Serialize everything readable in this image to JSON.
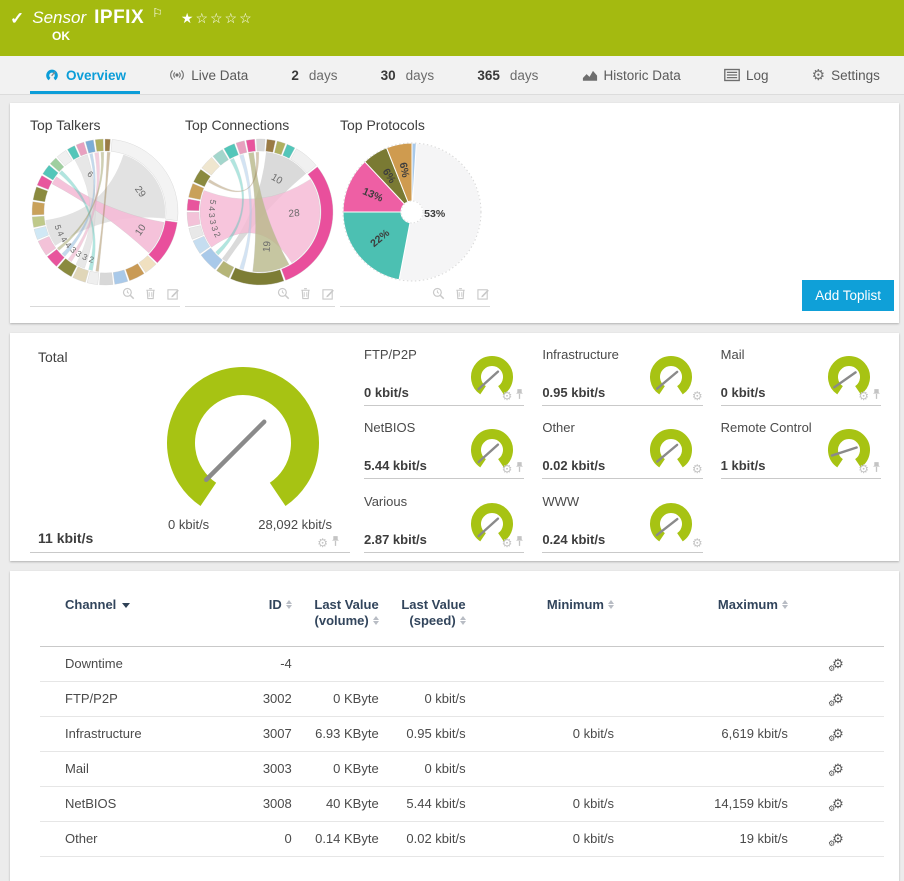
{
  "colors": {
    "brand_green": "#a4ba10",
    "gauge_green": "#a7c313",
    "accent_blue": "#0b9dd8",
    "button_blue": "#0fa0d8"
  },
  "header": {
    "kind": "Sensor",
    "name": "IPFIX",
    "stars": "★☆☆☆☆",
    "status": "OK"
  },
  "tabs": {
    "items": [
      {
        "label": "Overview",
        "icon": "gauge-icon",
        "active": true
      },
      {
        "label": "Live Data",
        "icon": "live-data-icon",
        "active": false
      },
      {
        "num": "2",
        "label": "days",
        "active": false
      },
      {
        "num": "30",
        "label": "days",
        "active": false
      },
      {
        "num": "365",
        "label": "days",
        "active": false
      },
      {
        "label": "Historic Data",
        "icon": "historic-data-icon",
        "active": false
      },
      {
        "label": "Log",
        "icon": "log-icon",
        "active": false
      },
      {
        "label": "Settings",
        "icon": "settings-gear-icon",
        "active": false
      }
    ]
  },
  "toplists": {
    "add_button": "Add Toplist",
    "charts": [
      {
        "title": "Top Talkers"
      },
      {
        "title": "Top Connections"
      },
      {
        "title": "Top Protocols"
      }
    ]
  },
  "total": {
    "label": "Total",
    "value": "11 kbit/s",
    "min": "0 kbit/s",
    "max": "28,092 kbit/s"
  },
  "chart_data": [
    {
      "id": "top-talkers",
      "type": "chord",
      "title": "Top Talkers",
      "start": 0,
      "sizes": [
        4,
        86,
        34,
        10,
        12,
        10,
        10,
        8,
        10,
        12,
        10,
        12,
        8,
        8,
        10,
        10,
        8,
        8,
        6,
        8,
        6,
        6,
        6,
        6
      ],
      "colors": [
        "#9a7b45",
        "#f3f3f3",
        "#e94f9c",
        "#f0e0c0",
        "#c99a55",
        "#a9c9e9",
        "#d8d8d8",
        "#efefef",
        "#e0d6b8",
        "#8a8a3f",
        "#e8559d",
        "#f3c2d8",
        "#d0e8f5",
        "#bfc98a",
        "#c9a15a",
        "#8a8a3f",
        "#e8559d",
        "#53c6b9",
        "#9fcf9f",
        "#f0f0f0",
        "#53c6b9",
        "#e8a0bf",
        "#7badd6",
        "#b0b060"
      ],
      "ribbons": [
        {
          "s": [
            18,
            96
          ],
          "e": [
            236,
            262
          ],
          "c": "#cccccc",
          "o": 0.55
        },
        {
          "s": [
            100,
            133
          ],
          "e": [
            298,
            306
          ],
          "c": "#f5bcd7",
          "o": 0.9
        },
        {
          "s": [
            330,
            343
          ],
          "e": [
            200,
            209
          ],
          "c": "#dddddd",
          "o": 0.7
        },
        {
          "s": [
            2,
            5
          ],
          "e": [
            186,
            189
          ],
          "c": "#9a7b45",
          "o": 0.45
        },
        {
          "s": [
            310,
            314
          ],
          "e": [
            192,
            196
          ],
          "c": "#53c6b9",
          "o": 0.45
        },
        {
          "s": [
            350,
            354
          ],
          "e": [
            214,
            218
          ],
          "c": "#e8a0bf",
          "o": 0.5
        },
        {
          "s": [
            345,
            348
          ],
          "e": [
            222,
            226
          ],
          "c": "#7badd6",
          "o": 0.45
        },
        {
          "s": [
            356,
            359
          ],
          "e": [
            230,
            233
          ],
          "c": "#8a8a3f",
          "o": 0.4
        }
      ],
      "labels": [
        {
          "t": "6",
          "a": 338,
          "r": 0.66,
          "rot": 40
        },
        {
          "t": "29",
          "a": 60,
          "r": 0.66,
          "rot": 55
        },
        {
          "t": "10",
          "a": 117,
          "r": 0.66,
          "rot": -55
        },
        {
          "t": "2",
          "a": 196,
          "r": 0.82,
          "rot": 16
        },
        {
          "t": "3",
          "a": 204,
          "r": 0.82,
          "rot": 24
        },
        {
          "t": "3",
          "a": 212,
          "r": 0.82,
          "rot": 32
        },
        {
          "t": "3",
          "a": 220,
          "r": 0.82,
          "rot": 40
        },
        {
          "t": "4",
          "a": 228,
          "r": 0.82,
          "rot": 48
        },
        {
          "t": "4",
          "a": 236,
          "r": 0.82,
          "rot": 56
        },
        {
          "t": "4",
          "a": 244,
          "r": 0.82,
          "rot": 64
        },
        {
          "t": "5",
          "a": 252,
          "r": 0.82,
          "rot": 72
        }
      ]
    },
    {
      "id": "top-connections",
      "type": "chord",
      "title": "Top Connections",
      "start": 30,
      "sizes": [
        18,
        95,
        38,
        10,
        14,
        10,
        8,
        10,
        8,
        10,
        10,
        10,
        8,
        8,
        6,
        6,
        6,
        6,
        6,
        6
      ],
      "colors": [
        "#f0f0f0",
        "#e94f9c",
        "#7d7d35",
        "#b5b578",
        "#a9c9e9",
        "#c5ddf0",
        "#e8e8e8",
        "#f3c2d8",
        "#e8559d",
        "#c9a15a",
        "#8a8a3f",
        "#efe6cf",
        "#a3d6cc",
        "#53c6b9",
        "#e8a0bf",
        "#e8559d",
        "#d8d8d8",
        "#9a7b45",
        "#b0b060",
        "#53c6b9"
      ],
      "ribbons": [
        {
          "s": [
            6,
            50
          ],
          "e": [
            214,
            219
          ],
          "c": "#d2d2d2",
          "o": 0.8
        },
        {
          "s": [
            57,
            148
          ],
          "e": [
            234,
            291
          ],
          "c": "#f6bcd6",
          "o": 0.85
        },
        {
          "s": [
            151,
            187
          ],
          "e": [
            349,
            354
          ],
          "c": "#b9b98a",
          "o": 0.8
        },
        {
          "s": [
            196,
            200
          ],
          "e": [
            340,
            344
          ],
          "c": "#a9c9e9",
          "o": 0.5
        },
        {
          "s": [
            330,
            334
          ],
          "e": [
            224,
            228
          ],
          "c": "#53c6b9",
          "o": 0.45
        },
        {
          "s": [
            356,
            359
          ],
          "e": [
            300,
            303
          ],
          "c": "#9a7b45",
          "o": 0.4
        }
      ],
      "labels": [
        {
          "t": "10",
          "a": 27,
          "r": 0.6,
          "rot": 30
        },
        {
          "t": "28",
          "a": 93,
          "r": 0.56,
          "rot": -5
        },
        {
          "t": "19",
          "a": 168,
          "r": 0.58,
          "rot": -85
        },
        {
          "t": "2",
          "a": 242,
          "r": 0.8,
          "rot": 62
        },
        {
          "t": "3",
          "a": 250,
          "r": 0.8,
          "rot": 70
        },
        {
          "t": "3",
          "a": 258,
          "r": 0.8,
          "rot": 78
        },
        {
          "t": "3",
          "a": 266,
          "r": 0.8,
          "rot": 86
        },
        {
          "t": "4",
          "a": 274,
          "r": 0.8,
          "rot": 94
        },
        {
          "t": "5",
          "a": 282,
          "r": 0.8,
          "rot": 102
        }
      ]
    },
    {
      "id": "top-protocols",
      "type": "pie",
      "title": "Top Protocols",
      "slices": [
        {
          "pct": 53,
          "c": "#f5f5f6"
        },
        {
          "pct": 22,
          "c": "#4cc0b2"
        },
        {
          "pct": 13,
          "c": "#ee5fa4"
        },
        {
          "pct": 6,
          "c": "#7a7a33"
        },
        {
          "pct": 6,
          "c": "#cf9b4f"
        },
        {
          "pct": 1,
          "c": "#a9c9e9"
        }
      ],
      "labels": [
        {
          "t": "53%",
          "a": 95,
          "r": 0.33,
          "rot": 0
        },
        {
          "t": "22%",
          "a": 230,
          "r": 0.6,
          "rot": -40
        },
        {
          "t": "13%",
          "a": 293,
          "r": 0.62,
          "rot": 23
        },
        {
          "t": "6%",
          "a": 327,
          "r": 0.62,
          "rot": 57
        },
        {
          "t": "6%",
          "a": 349,
          "r": 0.62,
          "rot": 79
        }
      ]
    },
    {
      "id": "total-gauge",
      "type": "gauge",
      "label": "Total",
      "value": "11 kbit/s",
      "min": "0 kbit/s",
      "max": "28,092 kbit/s",
      "tip_deg": 225
    },
    {
      "id": "channel-gauges",
      "type": "gauge",
      "items": [
        {
          "label": "FTP/P2P",
          "value": "0 kbit/s",
          "tip_deg": 228,
          "pinned": true
        },
        {
          "label": "Infrastructure",
          "value": "0.95 kbit/s",
          "tip_deg": 230,
          "pinned": false
        },
        {
          "label": "Mail",
          "value": "0 kbit/s",
          "tip_deg": 235,
          "pinned": true
        },
        {
          "label": "NetBIOS",
          "value": "5.44 kbit/s",
          "tip_deg": 228,
          "pinned": true
        },
        {
          "label": "Other",
          "value": "0.02 kbit/s",
          "tip_deg": 230,
          "pinned": false
        },
        {
          "label": "Remote Control",
          "value": "1 kbit/s",
          "tip_deg": 252,
          "pinned": true
        },
        {
          "label": "Various",
          "value": "2.87 kbit/s",
          "tip_deg": 228,
          "pinned": true
        },
        {
          "label": "WWW",
          "value": "0.24 kbit/s",
          "tip_deg": 232,
          "pinned": false
        }
      ]
    }
  ],
  "table": {
    "columns": [
      {
        "lines": [
          "Channel"
        ],
        "sorted_desc": true
      },
      {
        "lines": [
          "ID"
        ]
      },
      {
        "lines": [
          "Last Value",
          "(volume)"
        ]
      },
      {
        "lines": [
          "Last Value",
          "(speed)"
        ]
      },
      {
        "lines": [
          "Minimum"
        ]
      },
      {
        "lines": [
          "Maximum"
        ]
      }
    ],
    "rows": [
      [
        "Downtime",
        "-4",
        "",
        "",
        "",
        ""
      ],
      [
        "FTP/P2P",
        "3002",
        "0 KByte",
        "0 kbit/s",
        "",
        ""
      ],
      [
        "Infrastructure",
        "3007",
        "6.93 KByte",
        "0.95 kbit/s",
        "0 kbit/s",
        "6,619 kbit/s"
      ],
      [
        "Mail",
        "3003",
        "0 KByte",
        "0 kbit/s",
        "",
        ""
      ],
      [
        "NetBIOS",
        "3008",
        "40 KByte",
        "5.44 kbit/s",
        "0 kbit/s",
        "14,159 kbit/s"
      ],
      [
        "Other",
        "0",
        "0.14 KByte",
        "0.02 kbit/s",
        "0 kbit/s",
        "19 kbit/s"
      ]
    ]
  }
}
